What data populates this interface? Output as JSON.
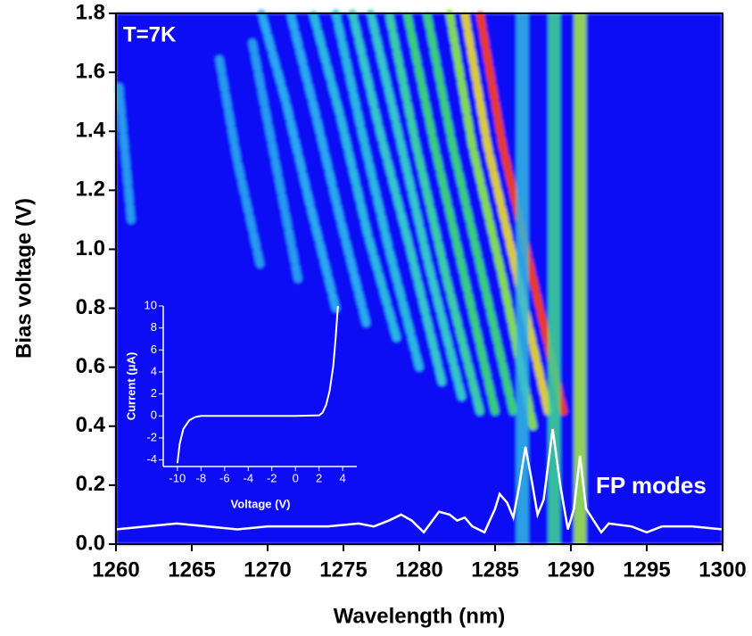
{
  "chart_data": [
    {
      "type": "heatmap",
      "xlabel": "Wavelength (nm)",
      "ylabel": "Bias voltage (V)",
      "annotations": [
        "T=7K",
        "FP modes"
      ],
      "xlim": [
        1260,
        1300
      ],
      "xticks": [
        1260,
        1265,
        1270,
        1275,
        1280,
        1285,
        1290,
        1295,
        1300
      ],
      "ylim": [
        0,
        1.8
      ],
      "yticks": [
        {
          "value": 0,
          "label": "0.0"
        },
        0.2,
        0.4,
        0.6,
        0.8,
        {
          "value": 1,
          "label": "1.0"
        },
        1.2,
        1.4,
        1.6,
        1.8
      ],
      "background": "#0a10f5",
      "modes": [
        {
          "x": 1286.8,
          "color": "#2fb8e0"
        },
        {
          "x": 1288.9,
          "color": "#40d890"
        },
        {
          "x": 1290.6,
          "color": "#a8f040"
        }
      ],
      "streaks": [
        {
          "color": "#ff4010",
          "x": [
            1289.5,
            1287.5,
            1285.5,
            1284
          ],
          "y": [
            0.45,
            0.9,
            1.35,
            1.8
          ]
        },
        {
          "color": "#f0e020",
          "x": [
            1288.5,
            1286.5,
            1284.5,
            1283
          ],
          "y": [
            0.45,
            0.9,
            1.35,
            1.8
          ]
        },
        {
          "color": "#90f040",
          "x": [
            1287.5,
            1285.5,
            1283.5,
            1282
          ],
          "y": [
            0.4,
            0.9,
            1.35,
            1.8
          ]
        },
        {
          "color": "#40e070",
          "x": [
            1286.2,
            1284.2,
            1282.2,
            1280.5
          ],
          "y": [
            0.45,
            0.9,
            1.35,
            1.8
          ]
        },
        {
          "color": "#40e070",
          "x": [
            1285,
            1283,
            1281,
            1279.2
          ],
          "y": [
            0.45,
            0.9,
            1.35,
            1.8
          ]
        },
        {
          "color": "#40e0a0",
          "x": [
            1284,
            1281.8,
            1279.8,
            1278
          ],
          "y": [
            0.45,
            0.9,
            1.35,
            1.8
          ]
        },
        {
          "color": "#38d8c8",
          "x": [
            1282.8,
            1280.6,
            1278.6,
            1276.8
          ],
          "y": [
            0.5,
            0.95,
            1.4,
            1.8
          ]
        },
        {
          "color": "#38d8c8",
          "x": [
            1281.5,
            1279.4,
            1277.4,
            1275.6
          ],
          "y": [
            0.55,
            1,
            1.4,
            1.8
          ]
        },
        {
          "color": "#30c8e0",
          "x": [
            1280,
            1278,
            1276.2,
            1274.5
          ],
          "y": [
            0.6,
            1,
            1.4,
            1.8
          ]
        },
        {
          "color": "#30c8e0",
          "x": [
            1278.5,
            1276.6,
            1274.8,
            1273
          ],
          "y": [
            0.7,
            1.05,
            1.45,
            1.8
          ]
        },
        {
          "color": "#30b8f0",
          "x": [
            1276.5,
            1274.8,
            1273.2,
            1271.5
          ],
          "y": [
            0.75,
            1.1,
            1.45,
            1.8
          ]
        },
        {
          "color": "#30b8f0",
          "x": [
            1274.5,
            1272.8,
            1271.2,
            1269.6
          ],
          "y": [
            0.8,
            1.15,
            1.5,
            1.8
          ]
        },
        {
          "color": "#28a8f0",
          "x": [
            1272,
            1270.5,
            1269
          ],
          "y": [
            0.9,
            1.3,
            1.7
          ]
        },
        {
          "color": "#28a8f0",
          "x": [
            1269.5,
            1268,
            1266.8
          ],
          "y": [
            0.95,
            1.3,
            1.65
          ]
        },
        {
          "color": "#28a8f0",
          "x": [
            1261,
            1260.2
          ],
          "y": [
            1.1,
            1.55
          ]
        }
      ],
      "spectrum": {
        "color": "#ffffff",
        "x": [
          1260,
          1262,
          1264,
          1266,
          1268,
          1270,
          1272,
          1274,
          1276,
          1277,
          1278,
          1278.8,
          1279.5,
          1280.3,
          1281.3,
          1282,
          1282.5,
          1283,
          1283.5,
          1284.3,
          1285,
          1285.3,
          1285.8,
          1286.2,
          1286.6,
          1287,
          1287.4,
          1287.8,
          1288.2,
          1288.8,
          1289.3,
          1289.8,
          1290.2,
          1290.6,
          1291,
          1291.5,
          1292,
          1292.5,
          1294,
          1295,
          1296,
          1298,
          1300
        ],
        "y": [
          0.05,
          0.06,
          0.07,
          0.06,
          0.05,
          0.06,
          0.06,
          0.06,
          0.07,
          0.06,
          0.08,
          0.1,
          0.08,
          0.04,
          0.11,
          0.1,
          0.08,
          0.09,
          0.06,
          0.04,
          0.12,
          0.17,
          0.14,
          0.09,
          0.2,
          0.33,
          0.22,
          0.1,
          0.15,
          0.39,
          0.2,
          0.05,
          0.12,
          0.3,
          0.12,
          0.08,
          0.04,
          0.07,
          0.06,
          0.04,
          0.06,
          0.06,
          0.05
        ]
      }
    },
    {
      "type": "line",
      "xlabel": "Voltage (V)",
      "ylabel": "Current (μA)",
      "xlim": [
        -11.2,
        5.2
      ],
      "xticks": [
        -10,
        -8,
        -6,
        -4,
        -2,
        0,
        2,
        4
      ],
      "ylim": [
        -4.6,
        10
      ],
      "yticks": [
        -4,
        -2,
        0,
        2,
        4,
        6,
        8,
        10
      ],
      "color": "#ffffff",
      "x": [
        -10,
        -9.8,
        -9.5,
        -9,
        -8.5,
        -8,
        -6,
        -4,
        -2,
        0,
        2,
        2.3,
        2.6,
        2.9,
        3.2,
        3.4,
        3.6
      ],
      "y": [
        -4.3,
        -2.5,
        -1.2,
        -0.4,
        -0.1,
        0,
        0,
        0,
        0,
        0,
        0.05,
        0.3,
        1,
        2.3,
        4.5,
        7,
        10
      ]
    }
  ]
}
